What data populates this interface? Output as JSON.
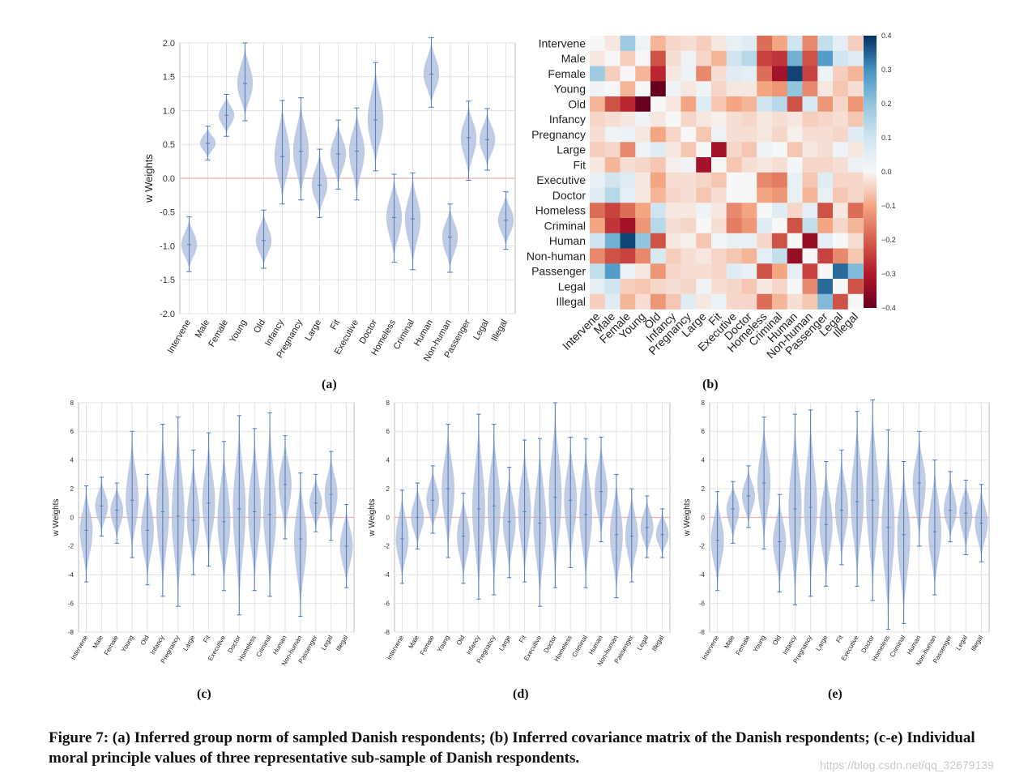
{
  "categories": [
    "Intervene",
    "Male",
    "Female",
    "Young",
    "Old",
    "Infancy",
    "Pregnancy",
    "Large",
    "Fit",
    "Executive",
    "Doctor",
    "Homeless",
    "Criminal",
    "Human",
    "Non-human",
    "Passenger",
    "Legal",
    "Illegal"
  ],
  "ylabel": "w Weights",
  "colors": {
    "violin": "#a9bbd9",
    "violin_line": "#5b7fc0",
    "zero_line": "#e8b0b0",
    "grid": "#e3e3e3"
  },
  "chart_data": [
    {
      "type": "violin",
      "id": "a",
      "ylim": [
        -2.0,
        2.0
      ],
      "yticks": [
        "2.0",
        "1.5",
        "1.0",
        "0.5",
        "0.0",
        "-0.5",
        "-1.0",
        "-1.5",
        "-2.0"
      ],
      "ylabel": "w Weights",
      "median": [
        -0.98,
        0.52,
        0.93,
        1.4,
        -0.92,
        0.32,
        0.4,
        -0.1,
        0.36,
        0.4,
        0.86,
        -0.58,
        -0.6,
        1.54,
        -0.87,
        0.6,
        0.57,
        -0.62
      ],
      "min": [
        -1.38,
        0.27,
        0.62,
        0.85,
        -1.33,
        -0.38,
        -0.32,
        -0.58,
        -0.16,
        -0.32,
        0.11,
        -1.24,
        -1.35,
        1.05,
        -1.39,
        -0.03,
        0.12,
        -1.05
      ],
      "max": [
        -0.57,
        0.77,
        1.24,
        2.0,
        -0.47,
        1.15,
        1.19,
        0.43,
        0.86,
        1.04,
        1.71,
        0.06,
        0.08,
        2.08,
        -0.38,
        1.14,
        1.03,
        -0.2
      ]
    },
    {
      "type": "heatmap",
      "id": "b",
      "colorbar_ticks": [
        "0.4",
        "0.3",
        "0.2",
        "0.1",
        "0.0",
        "−0.1",
        "−0.2",
        "−0.3",
        "−0.4"
      ],
      "vmin": -0.4,
      "vmax": 0.4,
      "matrix": [
        [
          0.0,
          -0.02,
          0.18,
          0.02,
          -0.08,
          -0.04,
          -0.03,
          -0.05,
          -0.02,
          0.04,
          0.06,
          -0.18,
          -0.1,
          0.1,
          -0.14,
          0.12,
          0.05,
          -0.05
        ],
        [
          -0.02,
          0.0,
          -0.05,
          0.0,
          -0.22,
          -0.03,
          0.02,
          -0.04,
          -0.08,
          0.1,
          0.14,
          -0.24,
          -0.26,
          0.24,
          -0.22,
          0.28,
          0.1,
          0.06
        ],
        [
          0.18,
          -0.05,
          0.0,
          -0.08,
          -0.28,
          -0.02,
          0.03,
          -0.14,
          -0.03,
          0.06,
          0.05,
          -0.18,
          -0.32,
          0.38,
          -0.24,
          0.03,
          -0.05,
          -0.08
        ],
        [
          0.02,
          0.0,
          -0.08,
          0.0,
          -0.4,
          0.02,
          -0.02,
          0.02,
          -0.04,
          -0.02,
          -0.02,
          -0.1,
          -0.12,
          0.2,
          -0.14,
          -0.02,
          -0.06,
          -0.03
        ],
        [
          -0.08,
          -0.22,
          -0.28,
          -0.4,
          0.0,
          -0.02,
          -0.1,
          0.06,
          -0.06,
          -0.1,
          -0.08,
          0.1,
          0.14,
          -0.22,
          0.08,
          -0.12,
          -0.04,
          -0.12
        ],
        [
          -0.04,
          -0.03,
          -0.02,
          0.02,
          -0.02,
          0.0,
          -0.04,
          -0.02,
          -0.01,
          -0.03,
          -0.04,
          -0.02,
          -0.03,
          -0.02,
          -0.05,
          -0.04,
          -0.03,
          -0.06
        ],
        [
          -0.03,
          0.02,
          0.03,
          -0.02,
          -0.1,
          -0.04,
          0.0,
          -0.06,
          0.02,
          -0.03,
          -0.03,
          -0.02,
          -0.04,
          -0.01,
          -0.03,
          -0.03,
          -0.04,
          0.06
        ],
        [
          -0.05,
          -0.04,
          -0.14,
          0.02,
          0.06,
          -0.02,
          -0.06,
          0.0,
          -0.32,
          -0.04,
          -0.06,
          0.02,
          0.0,
          -0.06,
          -0.02,
          -0.03,
          0.02,
          -0.02
        ],
        [
          -0.02,
          -0.08,
          -0.03,
          -0.04,
          -0.06,
          -0.01,
          0.02,
          -0.32,
          0.0,
          -0.06,
          -0.03,
          -0.02,
          -0.03,
          0.01,
          -0.04,
          -0.04,
          -0.03,
          0.03
        ],
        [
          0.04,
          0.1,
          0.06,
          -0.02,
          -0.1,
          -0.03,
          -0.03,
          -0.04,
          -0.06,
          0.0,
          0.0,
          -0.14,
          -0.16,
          0.04,
          -0.06,
          0.06,
          -0.04,
          -0.04
        ],
        [
          0.06,
          0.14,
          0.05,
          -0.02,
          -0.08,
          -0.04,
          -0.03,
          -0.06,
          -0.03,
          0.0,
          0.0,
          -0.1,
          -0.12,
          0.04,
          -0.08,
          0.04,
          -0.06,
          -0.04
        ],
        [
          -0.18,
          -0.24,
          -0.18,
          -0.1,
          0.1,
          -0.02,
          -0.02,
          0.02,
          -0.02,
          -0.14,
          -0.1,
          0.0,
          0.06,
          -0.04,
          0.05,
          -0.22,
          -0.02,
          -0.18
        ],
        [
          -0.1,
          -0.26,
          -0.32,
          -0.12,
          0.14,
          -0.03,
          -0.04,
          0.0,
          -0.03,
          -0.16,
          -0.12,
          0.06,
          0.0,
          -0.22,
          0.12,
          -0.1,
          -0.04,
          -0.08
        ],
        [
          0.1,
          0.24,
          0.38,
          0.2,
          -0.22,
          -0.02,
          -0.01,
          -0.06,
          0.01,
          0.04,
          0.04,
          -0.04,
          -0.22,
          0.0,
          -0.34,
          0.05,
          0.0,
          -0.03
        ],
        [
          -0.14,
          -0.22,
          -0.24,
          -0.14,
          0.08,
          -0.05,
          -0.03,
          -0.02,
          -0.04,
          -0.06,
          -0.08,
          0.05,
          0.12,
          -0.34,
          0.0,
          -0.24,
          -0.14,
          -0.06
        ],
        [
          0.12,
          0.28,
          0.03,
          -0.02,
          -0.12,
          -0.04,
          -0.03,
          -0.03,
          -0.04,
          0.06,
          0.04,
          -0.22,
          -0.1,
          0.05,
          -0.24,
          0.0,
          0.34,
          0.22
        ],
        [
          0.05,
          0.1,
          -0.05,
          -0.06,
          -0.04,
          -0.03,
          -0.04,
          0.02,
          -0.03,
          -0.04,
          -0.06,
          -0.02,
          -0.04,
          0.0,
          -0.14,
          0.34,
          0.0,
          -0.22
        ],
        [
          -0.05,
          0.06,
          -0.08,
          -0.03,
          -0.12,
          -0.06,
          0.06,
          -0.02,
          0.03,
          -0.04,
          -0.04,
          -0.18,
          -0.08,
          -0.03,
          -0.06,
          0.22,
          -0.22,
          0.0
        ]
      ]
    },
    {
      "type": "violin",
      "id": "c",
      "ylim": [
        -8,
        8
      ],
      "yticks": [
        "8",
        "6",
        "4",
        "2",
        "0",
        "-2",
        "-4",
        "-6",
        "-8"
      ],
      "ylabel": "w Weights",
      "median": [
        -0.9,
        0.8,
        0.5,
        1.2,
        -0.9,
        0.4,
        0.1,
        -0.2,
        1.0,
        -0.3,
        0.6,
        0.4,
        0.2,
        2.3,
        -1.5,
        1.0,
        1.6,
        -2.0
      ],
      "min": [
        -4.5,
        -1.3,
        -1.8,
        -2.8,
        -4.7,
        -5.5,
        -6.2,
        -4.0,
        -3.4,
        -5.1,
        -6.8,
        -5.1,
        -5.5,
        -1.5,
        -6.9,
        -1.0,
        -1.6,
        -4.9
      ],
      "max": [
        2.2,
        2.8,
        2.4,
        6.0,
        3.0,
        6.5,
        7.0,
        4.7,
        5.9,
        5.3,
        7.1,
        6.2,
        7.3,
        5.7,
        3.1,
        3.0,
        4.6,
        0.9
      ]
    },
    {
      "type": "violin",
      "id": "d",
      "ylim": [
        -8,
        8
      ],
      "yticks": [
        "8",
        "6",
        "4",
        "2",
        "0",
        "-2",
        "-4",
        "-6",
        "-8"
      ],
      "ylabel": "w Weights",
      "median": [
        -1.5,
        0.0,
        1.2,
        2.0,
        -1.3,
        0.6,
        0.8,
        -0.3,
        0.4,
        -0.4,
        1.4,
        1.2,
        0.2,
        1.8,
        -1.2,
        -1.3,
        -0.7,
        -1.2
      ],
      "min": [
        -4.6,
        -2.2,
        -1.1,
        -2.8,
        -4.6,
        -5.7,
        -5.4,
        -4.2,
        -4.5,
        -6.2,
        -4.9,
        -3.5,
        -4.9,
        -1.7,
        -5.6,
        -4.5,
        -2.8,
        -2.8
      ],
      "max": [
        1.9,
        2.4,
        3.6,
        6.5,
        1.7,
        7.2,
        6.5,
        3.5,
        5.4,
        5.5,
        8.0,
        5.6,
        5.5,
        5.6,
        3.0,
        2.0,
        1.5,
        0.6
      ]
    },
    {
      "type": "violin",
      "id": "e",
      "ylim": [
        -8,
        8
      ],
      "yticks": [
        "8",
        "6",
        "4",
        "2",
        "0",
        "-2",
        "-4",
        "-6",
        "-8"
      ],
      "ylabel": "w Weights",
      "median": [
        -1.6,
        0.6,
        1.5,
        2.4,
        -1.7,
        0.6,
        0.7,
        -0.5,
        0.5,
        1.1,
        1.2,
        -0.7,
        -1.2,
        2.4,
        -1.0,
        0.5,
        0.3,
        -0.4
      ],
      "min": [
        -5.1,
        -1.8,
        -0.7,
        -2.2,
        -5.2,
        -6.1,
        -5.5,
        -4.8,
        -3.3,
        -4.8,
        -5.8,
        -7.8,
        -7.4,
        -2.0,
        -5.4,
        -1.7,
        -2.6,
        -3.1
      ],
      "max": [
        1.8,
        2.5,
        3.6,
        7.0,
        1.6,
        7.2,
        7.5,
        3.9,
        4.7,
        7.4,
        8.2,
        6.1,
        3.9,
        6.0,
        4.0,
        3.2,
        2.6,
        2.3
      ]
    }
  ],
  "labels": {
    "a": "(a)",
    "b": "(b)",
    "c": "(c)",
    "d": "(d)",
    "e": "(e)"
  },
  "caption": "Figure 7: (a) Inferred group norm of sampled Danish respondents; (b) Inferred covariance matrix of the Danish respondents; (c-e) Individual moral principle values of three representative sub-sample of Danish respondents.",
  "watermark": "https://blog.csdn.net/qq_32679139"
}
